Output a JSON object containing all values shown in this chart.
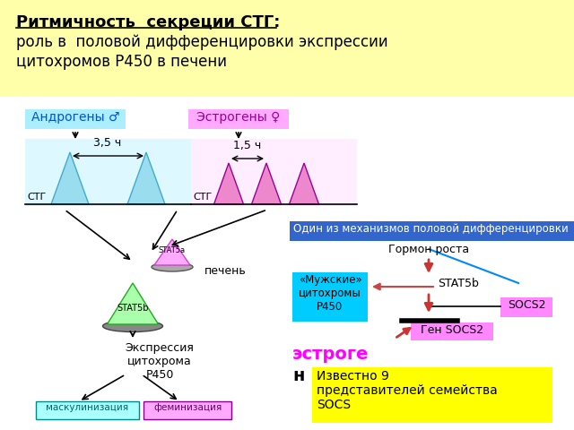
{
  "title_line1": "Ритмичность  секреции СТГ:",
  "title_line2": "роль в  половой дифференцировки экспрессии",
  "title_line3": "цитохромов Р450 в печени",
  "title_bg": "#ffffaa",
  "bg_color": "#ffffff",
  "androgeny_label": "Андрогены ♂",
  "androgeny_bg": "#aaeeff",
  "estrogeny_label": "Эстрогены ♀",
  "estrogeny_bg": "#ffaaff",
  "stg_label": "СТГ",
  "period_male": "3,5 ч",
  "period_female": "1,5 ч",
  "stat5a_label": "STAT5a",
  "stat5a_bg": "#ffaaff",
  "stat5b_label": "STAT5b",
  "stat5b_bg": "#aaffaa",
  "pechen_label": "печень",
  "expr_label": "Экспрессия\nцитохрома\nР450",
  "maskul_label": "маскулинизация",
  "maskul_bg": "#aaffff",
  "femin_label": "феминизация",
  "femin_bg": "#ffaaff",
  "mech_label": "Один из механизмов половой дифференцировки",
  "mech_bg": "#3366cc",
  "mech_fg": "#ffffff",
  "gormon_label": "Гормон роста",
  "mujskie_label": "«Мужские»\nцитохромы\nР450",
  "mujskie_bg": "#00ccff",
  "stat5b_right_label": "STAT5b",
  "socs2_label": "SOCS2",
  "socs2_bg": "#ff88ff",
  "gen_socs2_label": "Ген SOCS2",
  "gen_socs2_bg": "#ff88ff",
  "estrogen_label": "эстроге",
  "estrogen_fg": "#ff00ff",
  "n_label": "н",
  "izvestno_label": "Известно 9\nпредставителей семейства\nSOCS",
  "izvestno_bg": "#ffff00"
}
